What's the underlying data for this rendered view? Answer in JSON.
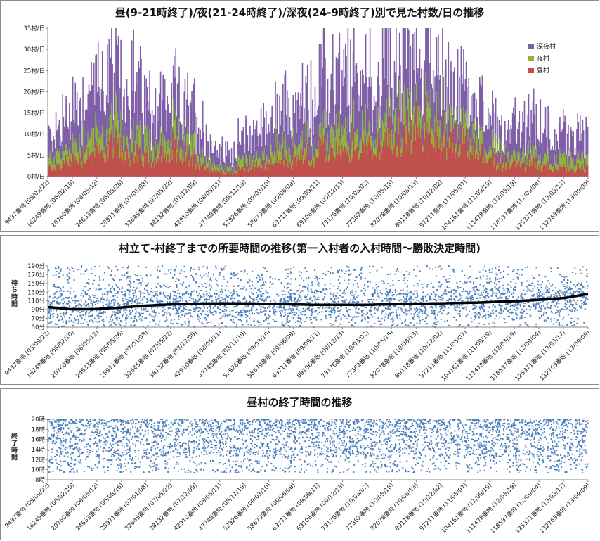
{
  "charts": {
    "daily_villages": {
      "title": "昼(9-21時終了)/夜(21-24時終了)/深夜(24-9時終了)別で見た村数/日の推移"
    },
    "duration": {
      "title": "村立て-村終了までの所要時間の推移(第一入村者の入村時間～勝敗決定時間)",
      "ylabel": "待ち時間"
    },
    "day_end": {
      "title": "昼村の終了時間の推移",
      "ylabel": "終了時間"
    }
  },
  "x_labels": [
    "9437番地 (05/09/22)",
    "16249番地 (06/02/10)",
    "20760番地 (06/05/12)",
    "24633番地 (06/08/26)",
    "28971番地 (07/01/08)",
    "32645番地 (07/05/22)",
    "38132番地 (07/12/09)",
    "42910番地 (08/05/11)",
    "47748番地 (08/11/19)",
    "52926番地 (09/03/10)",
    "58679番地 (09/06/08)",
    "63711番地 (09/09/11)",
    "69106番地 (09/12/13)",
    "73176番地 (10/03/02)",
    "77362番地 (10/05/18)",
    "82078番地 (10/08/13)",
    "89118番地 (10/12/02)",
    "97211番地 (11/05/07)",
    "104161番地 (11/09/19)",
    "111478番地 (12/03/19)",
    "118537番地 (12/09/04)",
    "125371番地 (13/03/17)",
    "132763番地 (13/09/09)"
  ],
  "colors": {
    "deep_night": "#7f5fa8",
    "night": "#8db43e",
    "day": "#c0504d",
    "scatter": "#4a7ebb",
    "trend": "#000000"
  },
  "legend": [
    {
      "label": "深夜村",
      "color": "#7f5fa8"
    },
    {
      "label": "夜村",
      "color": "#8db43e"
    },
    {
      "label": "昼村",
      "color": "#c0504d"
    }
  ],
  "chart_data": [
    {
      "type": "area",
      "title": "昼(9-21時終了)/夜(21-24時終了)/深夜(24-9時終了)別で見た村数/日の推移",
      "stacked": true,
      "y_tick_labels": [
        "0村/日",
        "5村/日",
        "10村/日",
        "15村/日",
        "20村/日",
        "25村/日",
        "30村/日",
        "35村/日"
      ],
      "ylim": [
        0,
        35
      ],
      "x_ticks": [
        "9437番地 (05/09/22)",
        "16249番地 (06/02/10)",
        "20760番地 (06/05/12)",
        "24633番地 (06/08/26)",
        "28971番地 (07/01/08)",
        "32645番地 (07/05/22)",
        "38132番地 (07/12/09)",
        "42910番地 (08/05/11)",
        "47748番地 (08/11/19)",
        "52926番地 (09/03/10)",
        "58679番地 (09/06/08)",
        "63711番地 (09/09/11)",
        "69106番地 (09/12/13)",
        "73176番地 (10/03/02)",
        "77362番地 (10/05/18)",
        "82078番地 (10/08/13)",
        "89118番地 (10/12/02)",
        "97211番地 (11/05/07)",
        "104161番地 (11/09/19)",
        "111478番地 (12/03/19)",
        "118537番地 (12/09/04)",
        "125371番地 (13/03/17)",
        "132763番地 (13/09/09)"
      ],
      "series": [
        {
          "name": "昼村",
          "values": [
            2,
            3,
            4,
            5,
            6,
            7,
            7,
            6,
            5,
            5,
            5,
            6,
            5,
            4,
            2,
            1,
            1,
            2,
            3,
            3,
            4,
            4,
            5,
            5,
            6,
            6,
            6,
            7,
            8,
            8,
            9,
            10,
            11,
            11,
            10,
            9,
            8,
            7,
            5,
            4,
            3,
            3,
            3,
            3,
            2,
            2,
            2,
            2
          ]
        },
        {
          "name": "夜村",
          "values": [
            2,
            3,
            3,
            4,
            4,
            4,
            5,
            4,
            4,
            3,
            3,
            4,
            3,
            3,
            2,
            1,
            1,
            2,
            2,
            2,
            3,
            3,
            3,
            3,
            3,
            4,
            4,
            4,
            4,
            4,
            5,
            5,
            5,
            5,
            5,
            4,
            4,
            4,
            3,
            3,
            2,
            2,
            2,
            2,
            2,
            2,
            2,
            2
          ]
        },
        {
          "name": "深夜村",
          "values": [
            5,
            7,
            8,
            10,
            12,
            12,
            13,
            12,
            10,
            9,
            8,
            9,
            8,
            7,
            5,
            4,
            4,
            5,
            6,
            7,
            8,
            9,
            10,
            11,
            12,
            12,
            12,
            13,
            13,
            13,
            13,
            14,
            13,
            13,
            12,
            10,
            9,
            8,
            7,
            6,
            6,
            7,
            7,
            7,
            6,
            6,
            6,
            5
          ]
        }
      ]
    },
    {
      "type": "scatter",
      "title": "村立て-村終了までの所要時間の推移(第一入村者の入村時間～勝敗決定時間)",
      "ylabel": "待ち時間",
      "y_tick_labels": [
        "50分",
        "70分",
        "90分",
        "110分",
        "130分",
        "150分",
        "170分",
        "190分"
      ],
      "ylim": [
        50,
        190
      ],
      "x_ticks": [
        "9437番地 (05/09/22)",
        "16249番地 (06/02/10)",
        "20760番地 (06/05/12)",
        "24633番地 (06/08/26)",
        "28971番地 (07/01/08)",
        "32645番地 (07/05/22)",
        "38132番地 (07/12/09)",
        "42910番地 (08/05/11)",
        "47748番地 (08/11/19)",
        "52926番地 (09/03/10)",
        "58679番地 (09/06/08)",
        "63711番地 (09/09/11)",
        "69106番地 (09/12/13)",
        "73176番地 (10/03/02)",
        "77362番地 (10/05/18)",
        "82078番地 (10/08/13)",
        "89118番地 (10/12/02)",
        "97211番地 (11/05/07)",
        "104161番地 (11/09/19)",
        "111478番地 (12/03/19)",
        "118537番地 (12/09/04)",
        "125371番地 (13/03/17)",
        "132763番地 (13/09/09)"
      ],
      "trend": [
        96,
        91,
        91,
        94,
        98,
        101,
        103,
        104,
        104,
        104,
        103,
        102,
        101,
        101,
        101,
        102,
        103,
        104,
        105,
        106,
        108,
        110,
        113,
        117,
        126
      ],
      "scatter_range": [
        50,
        190
      ]
    },
    {
      "type": "scatter",
      "title": "昼村の終了時間の推移",
      "ylabel": "終了時間",
      "y_tick_labels": [
        "8時",
        "10時",
        "12時",
        "14時",
        "16時",
        "18時",
        "20時"
      ],
      "ylim": [
        8,
        21
      ],
      "x_ticks": [
        "9437番地 (05/09/22)",
        "16249番地 (06/02/10)",
        "20760番地 (06/05/12)",
        "24633番地 (06/08/26)",
        "28971番地 (07/01/08)",
        "32645番地 (07/05/22)",
        "38132番地 (07/12/09)",
        "42910番地 (08/05/11)",
        "47748番地 (08/11/19)",
        "52926番地 (09/03/10)",
        "58679番地 (09/06/08)",
        "63711番地 (09/09/11)",
        "69106番地 (09/12/13)",
        "73176番地 (10/03/02)",
        "77362番地 (10/05/18)",
        "82078番地 (10/08/13)",
        "89118番地 (10/12/02)",
        "97211番地 (11/05/07)",
        "104161番地 (11/09/19)",
        "111478番地 (12/03/19)",
        "118537番地 (12/09/04)",
        "125371番地 (13/03/17)",
        "132763番地 (13/09/09)"
      ],
      "scatter_range": [
        9.5,
        21
      ]
    }
  ]
}
